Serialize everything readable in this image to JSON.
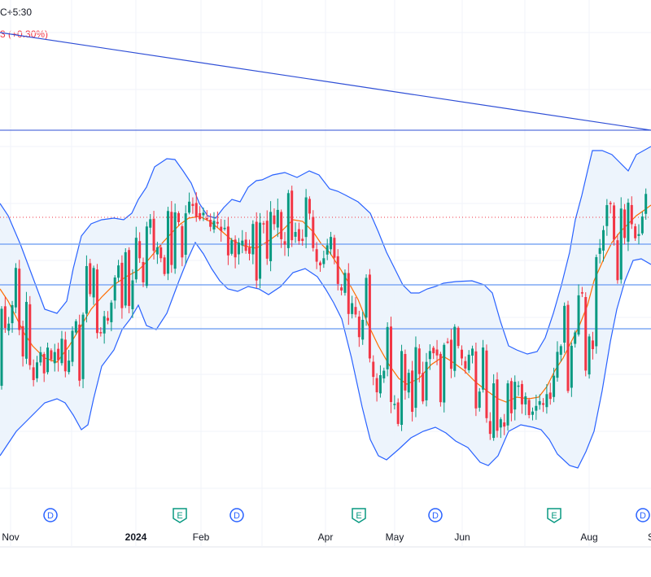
{
  "legend": {
    "timezone_fragment": "C+5:30",
    "change_fragment": "3 (+0.30%)"
  },
  "colors": {
    "up": "#089981",
    "down": "#f23645",
    "bb_line": "#2962ff",
    "bb_fill": "#eaf2fb",
    "basis": "#ff6d00",
    "hline": "#2962ff",
    "trendline": "#2f4fd6",
    "price_dotted": "#f23645",
    "axis_text": "#131722",
    "event_D": "#2962ff",
    "event_E": "#089981"
  },
  "chart_data": {
    "type": "candlestick",
    "title": "",
    "x_axis": {
      "labels": [
        "Nov",
        "2024",
        "Feb",
        "Apr",
        "May",
        "Jun",
        "Aug",
        "S"
      ]
    },
    "indicators": [
      "Bollinger Bands (upper, basis, lower)"
    ],
    "horizontal_lines": 4,
    "trendlines": 1,
    "events": [
      "D",
      "E",
      "D",
      "E",
      "D",
      "E",
      "D"
    ],
    "candles": []
  }
}
